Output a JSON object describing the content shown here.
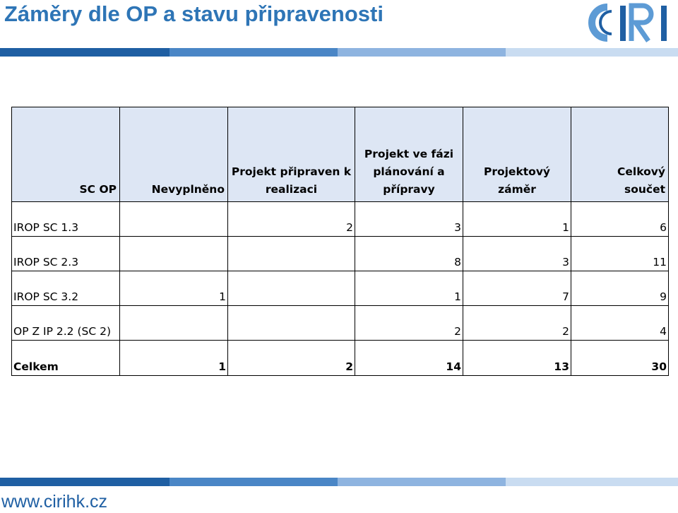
{
  "title": "Záměry dle OP a stavu připravenosti",
  "logo": {
    "text": "CIRI",
    "colors": {
      "blue": "#1f5fa3",
      "light": "#5d9bd5"
    }
  },
  "table": {
    "headers": [
      "SC OP",
      "Nevyplněno",
      "Projekt připraven k realizaci",
      "Projekt ve fázi plánování a přípravy",
      "Projektový záměr",
      "Celkový součet"
    ],
    "rows": [
      {
        "label": "IROP SC 1.3",
        "cells": [
          "",
          "2",
          "3",
          "1",
          "6"
        ]
      },
      {
        "label": "IROP SC 2.3",
        "cells": [
          "",
          "",
          "8",
          "3",
          "11"
        ]
      },
      {
        "label": "IROP SC 3.2",
        "cells": [
          "1",
          "",
          "1",
          "7",
          "9"
        ]
      },
      {
        "label": "OP Z IP 2.2 (SC 2)",
        "cells": [
          "",
          "",
          "2",
          "2",
          "4"
        ]
      }
    ],
    "total": {
      "label": "Celkem",
      "cells": [
        "1",
        "2",
        "14",
        "13",
        "30"
      ]
    }
  },
  "footer": {
    "url": "www.cirihk.cz"
  },
  "colors": {
    "title": "#2e75b6",
    "header_bg": "#dde6f4",
    "bar_dark": "#1f5fa3"
  }
}
